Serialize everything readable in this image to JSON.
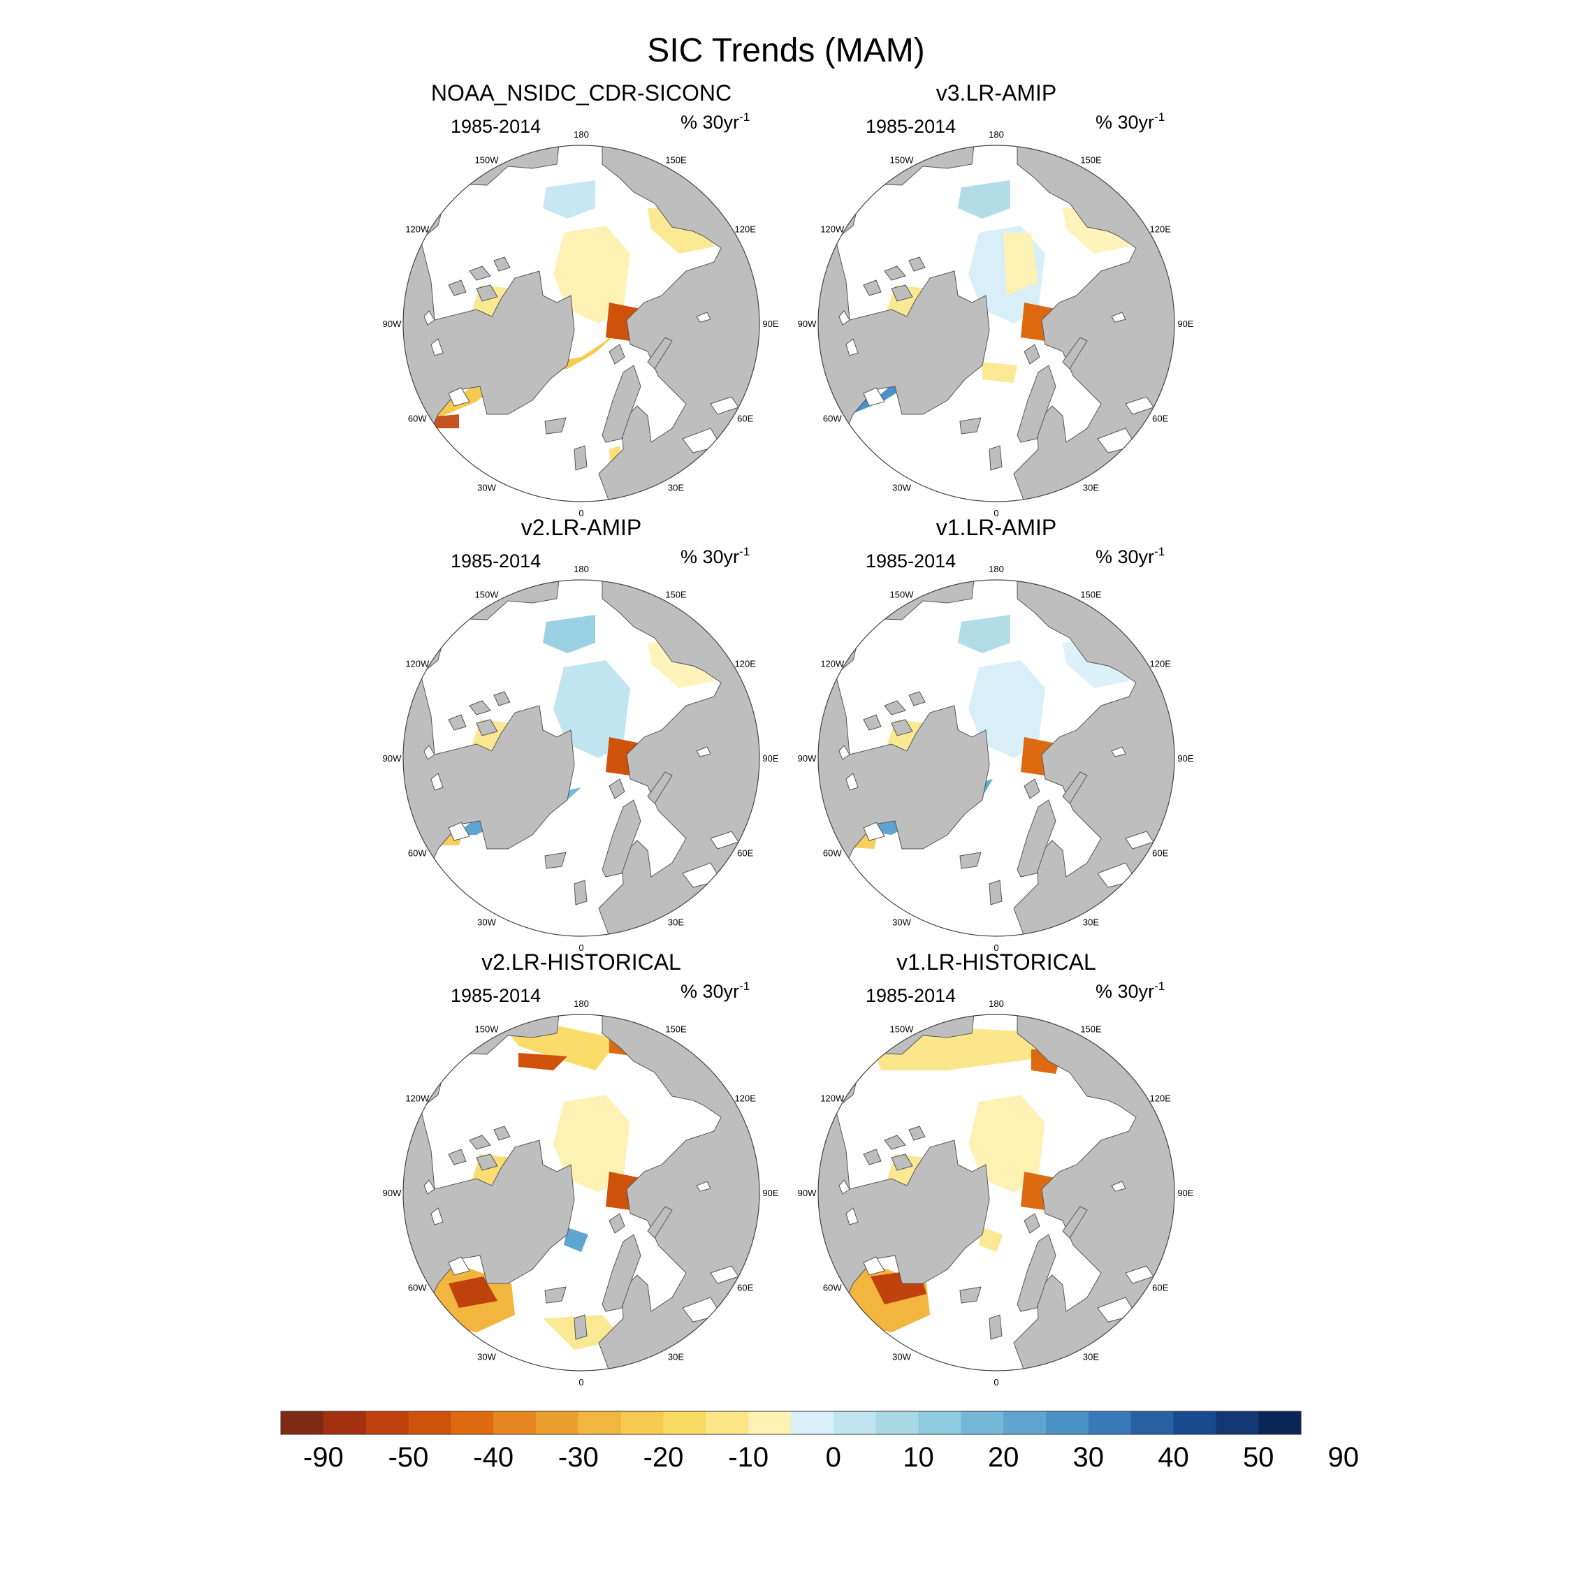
{
  "figure": {
    "title": "SIC Trends (MAM)"
  },
  "panels": [
    {
      "title": "NOAA_NSIDC_CDR-SICONC",
      "period": "1985-2014",
      "units": "% 30yr",
      "units_sup": "-1"
    },
    {
      "title": "v3.LR-AMIP",
      "period": "1985-2014",
      "units": "% 30yr",
      "units_sup": "-1"
    },
    {
      "title": "v2.LR-AMIP",
      "period": "1985-2014",
      "units": "% 30yr",
      "units_sup": "-1"
    },
    {
      "title": "v1.LR-AMIP",
      "period": "1985-2014",
      "units": "% 30yr",
      "units_sup": "-1"
    },
    {
      "title": "v2.LR-HISTORICAL",
      "period": "1985-2014",
      "units": "% 30yr",
      "units_sup": "-1"
    },
    {
      "title": "v1.LR-HISTORICAL",
      "period": "1985-2014",
      "units": "% 30yr",
      "units_sup": "-1"
    }
  ],
  "longitude_labels": [
    "180",
    "150E",
    "120E",
    "90E",
    "60E",
    "30E",
    "0",
    "30W",
    "60W",
    "90W",
    "120W",
    "150W"
  ],
  "colorbar": {
    "labels": [
      "-90",
      "-50",
      "-40",
      "-30",
      "-20",
      "-10",
      "0",
      "10",
      "20",
      "30",
      "40",
      "50",
      "90"
    ],
    "colors": [
      "#7f2a14",
      "#a3300f",
      "#bf410b",
      "#cf520b",
      "#dd6a10",
      "#e58620",
      "#ec9f2c",
      "#f2b53e",
      "#f6c94f",
      "#f9da62",
      "#fbe586",
      "#fdf2b4",
      "#d8eff7",
      "#c1e5f0",
      "#a8d8e6",
      "#8ecbe0",
      "#74b8d8",
      "#5ea6cf",
      "#4a92c6",
      "#3779b6",
      "#2761a4",
      "#1a4a8e",
      "#123773",
      "#0a2556"
    ]
  },
  "colors": {
    "land": "#bebebe",
    "ocean": "#ffffff",
    "coast": "#555555"
  }
}
